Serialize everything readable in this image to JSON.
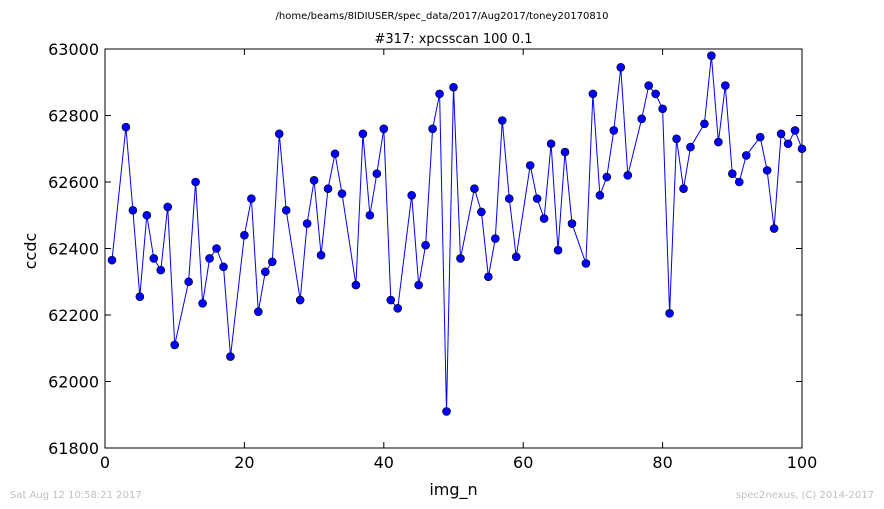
{
  "figure": {
    "path_text": "/home/beams/8IDIUSER/spec_data/2017/Aug2017/toney20170810",
    "timestamp": "Sat Aug 12 10:58:21 2017",
    "credit": "spec2nexus, (C) 2014-2017"
  },
  "chart_data": {
    "type": "line",
    "title": "#317: xpcsscan 100 0.1",
    "xlabel": "img_n",
    "ylabel": "ccdc",
    "xlim": [
      0,
      100
    ],
    "ylim": [
      61800,
      63000
    ],
    "xticks": [
      0,
      20,
      40,
      60,
      80,
      100
    ],
    "yticks": [
      61800,
      62000,
      62200,
      62400,
      62600,
      62800,
      63000
    ],
    "grid": false,
    "legend": "none",
    "series_color": "#0000ff",
    "marker": "circle",
    "x": [
      1,
      3,
      4,
      5,
      6,
      7,
      8,
      9,
      10,
      12,
      13,
      14,
      15,
      16,
      17,
      18,
      20,
      21,
      22,
      23,
      24,
      25,
      26,
      28,
      29,
      30,
      31,
      32,
      33,
      34,
      36,
      37,
      38,
      39,
      40,
      41,
      42,
      44,
      45,
      46,
      47,
      48,
      49,
      50,
      51,
      53,
      54,
      55,
      56,
      57,
      58,
      59,
      61,
      62,
      63,
      64,
      65,
      66,
      67,
      69,
      70,
      71,
      72,
      73,
      74,
      75,
      77,
      78,
      79,
      80,
      81,
      82,
      83,
      84,
      86,
      87,
      88,
      89,
      90,
      91,
      92,
      94,
      95,
      96,
      97,
      98,
      99,
      100
    ],
    "y": [
      62365,
      62765,
      62515,
      62255,
      62500,
      62370,
      62335,
      62525,
      62110,
      62300,
      62600,
      62235,
      62370,
      62400,
      62345,
      62075,
      62440,
      62550,
      62210,
      62330,
      62360,
      62745,
      62515,
      62245,
      62475,
      62605,
      62380,
      62580,
      62685,
      62565,
      62290,
      62745,
      62500,
      62625,
      62760,
      62245,
      62220,
      62560,
      62290,
      62410,
      62760,
      62865,
      61910,
      62885,
      62370,
      62580,
      62510,
      62315,
      62430,
      62785,
      62550,
      62375,
      62650,
      62550,
      62490,
      62715,
      62395,
      62690,
      62475,
      62355,
      62865,
      62560,
      62615,
      62755,
      62945,
      62620,
      62790,
      62890,
      62865,
      62820,
      62205,
      62730,
      62580,
      62705,
      62775,
      62980,
      62720,
      62890,
      62625,
      62600,
      62680,
      62735,
      62635,
      62460,
      62745,
      62715,
      62755,
      62700
    ]
  }
}
